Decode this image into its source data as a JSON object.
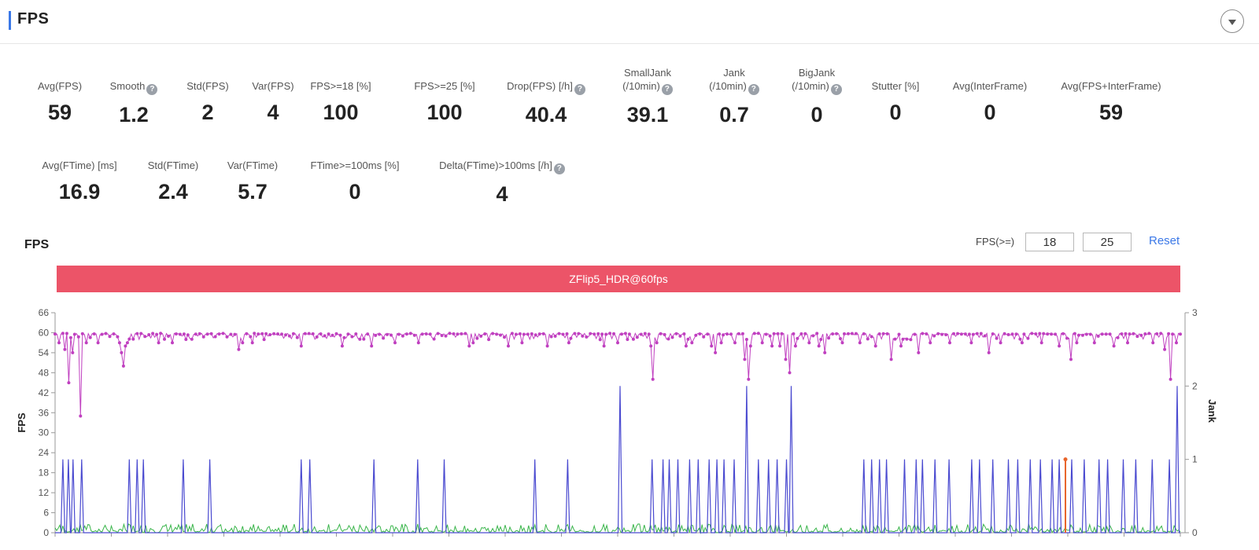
{
  "header": {
    "title": "FPS"
  },
  "metrics_row1": [
    {
      "label_lines": [
        "Avg(FPS)"
      ],
      "value": "59",
      "help": false
    },
    {
      "label_lines": [
        "Smooth"
      ],
      "value": "1.2",
      "help": true
    },
    {
      "label_lines": [
        "Std(FPS)"
      ],
      "value": "2",
      "help": false
    },
    {
      "label_lines": [
        "Var(FPS)"
      ],
      "value": "4",
      "help": false
    },
    {
      "label_lines": [
        "FPS>=18 [%]"
      ],
      "value": "100",
      "help": false
    },
    {
      "label_lines": [
        "FPS>=25 [%]"
      ],
      "value": "100",
      "help": false
    },
    {
      "label_lines": [
        "Drop(FPS) [/h]"
      ],
      "value": "40.4",
      "help": true
    },
    {
      "label_lines": [
        "SmallJank",
        "(/10min)"
      ],
      "value": "39.1",
      "help": true
    },
    {
      "label_lines": [
        "Jank",
        "(/10min)"
      ],
      "value": "0.7",
      "help": true
    },
    {
      "label_lines": [
        "BigJank",
        "(/10min)"
      ],
      "value": "0",
      "help": true
    },
    {
      "label_lines": [
        "Stutter [%]"
      ],
      "value": "0",
      "help": false
    },
    {
      "label_lines": [
        "Avg(InterFrame)"
      ],
      "value": "0",
      "help": false
    },
    {
      "label_lines": [
        "Avg(FPS+InterFrame)"
      ],
      "value": "59",
      "help": false
    }
  ],
  "metrics_row2": [
    {
      "label_lines": [
        "Avg(FTime) [ms]"
      ],
      "value": "16.9",
      "help": false
    },
    {
      "label_lines": [
        "Std(FTime)"
      ],
      "value": "2.4",
      "help": false
    },
    {
      "label_lines": [
        "Var(FTime)"
      ],
      "value": "5.7",
      "help": false
    },
    {
      "label_lines": [
        "FTime>=100ms [%]"
      ],
      "value": "0",
      "help": false
    },
    {
      "label_lines": [
        "Delta(FTime)>100ms [/h]"
      ],
      "value": "4",
      "help": true
    }
  ],
  "chart_section": {
    "title": "FPS",
    "fps_threshold_label": "FPS(>=)",
    "threshold_low": "18",
    "threshold_high": "25",
    "reset_label": "Reset",
    "device_label": "ZFlip5_HDR@60fps"
  },
  "colors": {
    "accent": "#3b78e7",
    "device_bar": "#ec5468",
    "fps_series": "#c040c0",
    "jank_series": "#4a4ad0",
    "small_series": "#39b54a",
    "bigjank_series": "#e8642a"
  },
  "chart_data": {
    "type": "line",
    "ylabel": "FPS",
    "y2label": "Jank",
    "ylim": [
      0,
      66
    ],
    "y2lim": [
      0,
      3
    ],
    "yticks": [
      "0",
      "6",
      "12",
      "18",
      "24",
      "30",
      "36",
      "42",
      "48",
      "54",
      "60",
      "66"
    ],
    "y2ticks": [
      "0",
      "1",
      "2",
      "3"
    ],
    "series": [
      {
        "name": "FPS",
        "baseline": 59.5,
        "dips": [
          [
            0.5,
            57
          ],
          [
            1.2,
            55
          ],
          [
            1.7,
            45
          ],
          [
            2.2,
            54
          ],
          [
            3.3,
            35
          ],
          [
            4.1,
            57
          ],
          [
            5.4,
            57
          ],
          [
            8.3,
            57
          ],
          [
            8.6,
            54
          ],
          [
            8.8,
            50
          ],
          [
            9.0,
            56
          ],
          [
            9.3,
            57
          ],
          [
            13.3,
            57
          ],
          [
            15.1,
            57
          ],
          [
            23.5,
            55
          ],
          [
            23.9,
            57
          ],
          [
            25.2,
            57
          ],
          [
            31.4,
            56
          ],
          [
            36.7,
            56
          ],
          [
            40.6,
            56
          ],
          [
            43.4,
            57
          ],
          [
            46.6,
            57
          ],
          [
            52.9,
            56
          ],
          [
            53.6,
            57
          ],
          [
            57.9,
            56
          ],
          [
            59.8,
            57
          ],
          [
            62.9,
            56
          ],
          [
            65.7,
            57
          ],
          [
            70.3,
            56
          ],
          [
            72.1,
            57
          ],
          [
            76.3,
            56
          ],
          [
            76.6,
            46
          ],
          [
            77.0,
            57
          ],
          [
            80.8,
            56
          ],
          [
            81.5,
            57
          ],
          [
            84.0,
            56
          ],
          [
            84.6,
            54
          ],
          [
            85.2,
            57
          ],
          [
            87.0,
            57
          ],
          [
            88.2,
            52
          ],
          [
            88.7,
            46
          ],
          [
            89.1,
            56
          ],
          [
            90.6,
            57
          ],
          [
            91.8,
            56
          ],
          [
            92.8,
            56
          ],
          [
            93.6,
            52
          ],
          [
            94.0,
            48
          ],
          [
            94.8,
            56
          ],
          [
            96.5,
            57
          ],
          [
            97.8,
            56
          ],
          [
            98.6,
            54
          ],
          [
            100.8,
            57
          ],
          [
            103.1,
            57
          ],
          [
            105.0,
            56
          ],
          [
            106.9,
            52
          ],
          [
            108.3,
            56
          ],
          [
            110.4,
            54
          ],
          [
            112.0,
            57
          ],
          [
            114.6,
            57
          ],
          [
            117.2,
            57
          ],
          [
            119.4,
            54
          ],
          [
            121.0,
            57
          ],
          [
            123.8,
            57
          ],
          [
            126.3,
            57
          ],
          [
            128.4,
            56
          ],
          [
            130.1,
            52
          ],
          [
            130.8,
            57
          ],
          [
            133.0,
            57
          ],
          [
            135.5,
            56
          ],
          [
            137.3,
            57
          ],
          [
            140.5,
            57
          ],
          [
            142.0,
            55
          ],
          [
            142.8,
            46
          ],
          [
            143.6,
            57
          ]
        ]
      },
      {
        "name": "Jank",
        "spikes": [
          [
            1.0,
            1
          ],
          [
            1.7,
            1
          ],
          [
            2.3,
            1
          ],
          [
            3.4,
            1
          ],
          [
            9.5,
            1
          ],
          [
            10.5,
            1
          ],
          [
            11.3,
            1
          ],
          [
            16.4,
            1
          ],
          [
            19.8,
            1
          ],
          [
            31.5,
            1
          ],
          [
            32.6,
            1
          ],
          [
            40.8,
            1
          ],
          [
            46.4,
            1
          ],
          [
            49.8,
            1
          ],
          [
            61.4,
            1
          ],
          [
            65.6,
            1
          ],
          [
            72.3,
            2
          ],
          [
            76.4,
            1
          ],
          [
            77.8,
            1
          ],
          [
            78.6,
            1
          ],
          [
            79.7,
            1
          ],
          [
            81.2,
            1
          ],
          [
            82.3,
            1
          ],
          [
            83.7,
            1
          ],
          [
            84.7,
            1
          ],
          [
            85.6,
            1
          ],
          [
            86.9,
            1
          ],
          [
            88.5,
            2
          ],
          [
            90.0,
            1
          ],
          [
            91.3,
            1
          ],
          [
            92.4,
            1
          ],
          [
            93.6,
            1
          ],
          [
            94.2,
            2
          ],
          [
            103.5,
            1
          ],
          [
            104.5,
            1
          ],
          [
            105.5,
            1
          ],
          [
            106.4,
            1
          ],
          [
            108.7,
            1
          ],
          [
            110.2,
            1
          ],
          [
            111.0,
            1
          ],
          [
            112.6,
            1
          ],
          [
            114.4,
            1
          ],
          [
            117.3,
            1
          ],
          [
            118.3,
            1
          ],
          [
            120.0,
            1
          ],
          [
            122.0,
            1
          ],
          [
            123.2,
            1
          ],
          [
            124.8,
            1
          ],
          [
            126.1,
            1
          ],
          [
            127.6,
            1
          ],
          [
            128.5,
            1
          ],
          [
            130.1,
            1
          ],
          [
            131.7,
            1
          ],
          [
            133.6,
            1
          ],
          [
            134.7,
            1
          ],
          [
            136.7,
            1
          ],
          [
            138.3,
            1
          ],
          [
            140.4,
            1
          ],
          [
            142.6,
            1
          ],
          [
            143.6,
            2
          ]
        ]
      },
      {
        "name": "BigJank",
        "spikes": [
          [
            129.3,
            1
          ]
        ]
      }
    ]
  }
}
